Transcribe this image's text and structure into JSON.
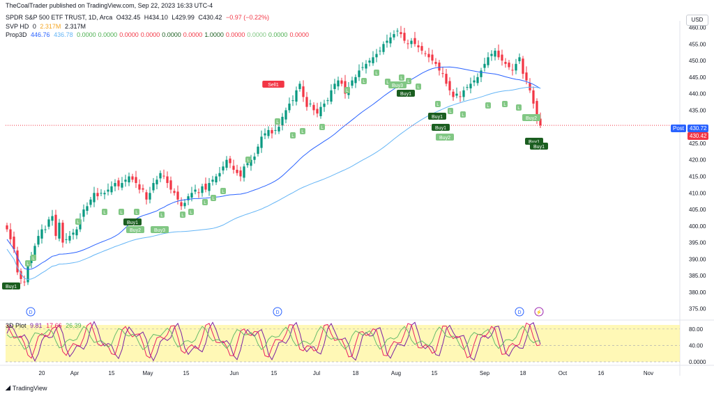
{
  "header": {
    "published": "TheCoalTrader published on TradingView.com, Sep 22, 2023 16:33 UTC-4",
    "symbol": "SPDR S&P 500 ETF TRUST, 1D, Arca",
    "ohlc": [
      "O432.45",
      "H434.10",
      "L429.99",
      "C430.42",
      "−0.97 (−0.22%)"
    ],
    "svp": {
      "name": "SVP HD",
      "v1": "0",
      "v2": "2.317M",
      "v3": "2.317M"
    },
    "prop": {
      "name": "Prop3D",
      "v1": "446.76",
      "v2": "436.78",
      "rest": [
        "0.0000",
        "0.0000",
        "0.0000",
        "0.0000",
        "0.0000",
        "0.0000",
        "1.0000",
        "0.0000",
        "0.0000",
        "0.0000",
        "0.0000"
      ]
    }
  },
  "price_axis": {
    "currency_button": "USD",
    "ticks": [
      "460.00",
      "455.00",
      "450.00",
      "445.00",
      "440.00",
      "435.00",
      "430.00",
      "425.00",
      "420.00",
      "415.00",
      "410.00",
      "405.00",
      "400.00",
      "395.00",
      "390.00",
      "385.00",
      "380.00",
      "375.00"
    ],
    "post_label": "Post",
    "post_price": "430.72",
    "last_price": "430.42"
  },
  "time_axis": [
    "20",
    "Apr",
    "15",
    "May",
    "15",
    "Jun",
    "15",
    "Jul",
    "18",
    "Aug",
    "15",
    "Sep",
    "18",
    "Oct",
    "16",
    "Nov"
  ],
  "signals": [
    "Buy1",
    "Sell1",
    "Buy1",
    "Buy2",
    "Buy3",
    "Buy3",
    "Buy1",
    "Buy1",
    "Buy1",
    "Buy2",
    "Buy2",
    "Buy1",
    "Buy1",
    "L"
  ],
  "events": {
    "dividend": "D",
    "split": "⚡"
  },
  "oscillator": {
    "name": "3D Plot",
    "v1": "9.81",
    "v2": "17.66",
    "v3": "26.39",
    "ticks": [
      "80.00",
      "40.00",
      "0.0000"
    ]
  },
  "watermark": "TradingView",
  "colors": {
    "up": "#089981",
    "down": "#f23645",
    "ma_fast": "#2962ff",
    "ma_slow": "#64b5f6",
    "buy": "#1b5e20",
    "buy_light": "#81c784",
    "sell": "#f23645",
    "osc_fill": "#fff59d",
    "last_price": "#f23645",
    "post": "#2962ff"
  },
  "chart_data": {
    "type": "candlestick",
    "title": "SPDR S&P 500 ETF TRUST, 1D, Arca",
    "ylim": [
      372,
      462
    ],
    "closes": [
      399,
      396,
      393,
      386,
      384,
      383,
      388,
      391,
      394,
      397,
      399,
      399,
      402,
      403,
      397,
      401,
      395,
      396,
      397,
      398,
      399,
      402,
      405,
      406,
      408,
      410,
      409,
      410,
      410,
      411,
      412,
      413,
      412,
      413,
      414,
      415,
      414,
      413,
      411,
      411,
      408,
      410,
      413,
      414,
      416,
      415,
      413,
      411,
      410,
      408,
      406,
      407,
      409,
      410,
      411,
      410,
      412,
      411,
      413,
      414,
      415,
      416,
      418,
      420,
      419,
      417,
      416,
      415,
      418,
      419,
      420,
      421,
      424,
      427,
      428,
      429,
      428,
      429,
      430,
      433,
      435,
      437,
      438,
      441,
      443,
      439,
      436,
      437,
      435,
      434,
      436,
      437,
      438,
      441,
      443,
      444,
      443,
      440,
      442,
      444,
      445,
      447,
      448,
      449,
      450,
      451,
      452,
      453,
      455,
      456,
      457,
      458,
      459,
      458,
      456,
      455,
      456,
      455,
      454,
      453,
      452,
      451,
      450,
      449,
      447,
      446,
      443,
      441,
      439,
      440,
      439,
      441,
      442,
      443,
      444,
      445,
      447,
      449,
      451,
      452,
      453,
      451,
      450,
      449,
      448,
      447,
      449,
      451,
      446,
      444,
      441,
      437,
      432,
      430.42
    ],
    "volume_profile": {
      "name": "SVP HD"
    },
    "oscillator_ylim": [
      0,
      100
    ],
    "oscillator_levels": [
      80,
      40,
      0
    ]
  }
}
